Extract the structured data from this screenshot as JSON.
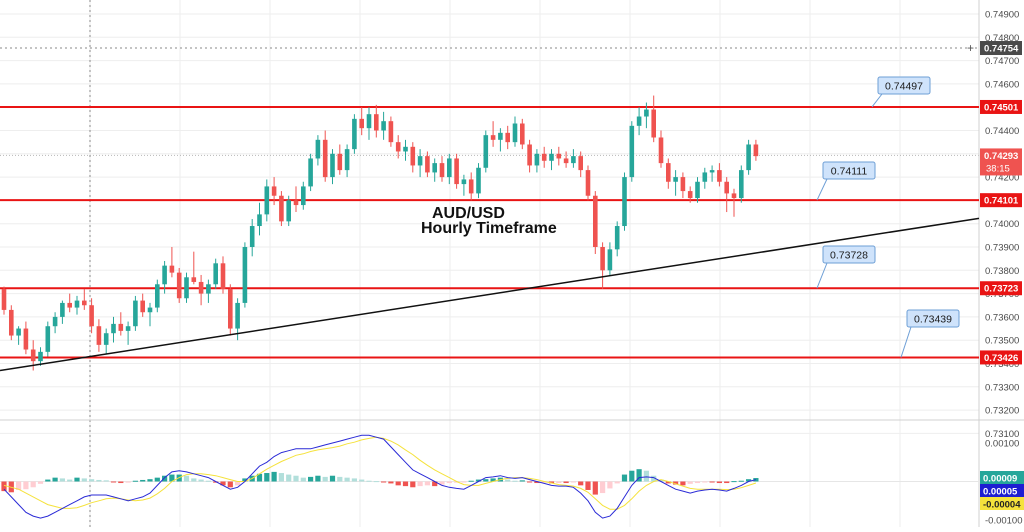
{
  "chart_data": {
    "type": "candlestick",
    "title": "AUD/USD",
    "subtitle": "Hourly Timeframe",
    "price_axis": {
      "ylim": [
        0.73,
        0.75
      ],
      "ticks": [
        "0.74900",
        "0.74800",
        "0.74700",
        "0.74600",
        "0.74500",
        "0.74400",
        "0.74300",
        "0.74200",
        "0.74100",
        "0.74000",
        "0.73900",
        "0.73800",
        "0.73700",
        "0.73600",
        "0.73500",
        "0.73400",
        "0.73300",
        "0.73200",
        "0.73100"
      ],
      "tick_values": [
        0.749,
        0.748,
        0.747,
        0.746,
        0.745,
        0.744,
        0.743,
        0.742,
        0.741,
        0.74,
        0.739,
        0.738,
        0.737,
        0.736,
        0.735,
        0.734,
        0.733,
        0.732,
        0.731
      ],
      "grid": true
    },
    "crosshair": {
      "label": "0.74754",
      "value": 0.74754,
      "plus": "+"
    },
    "current_price": {
      "label": "0.74293",
      "value": 0.74293,
      "countdown": "38:15"
    },
    "horizontal_levels": [
      {
        "value": 0.74501,
        "axis_label": "0.74501",
        "callout": "0.74497"
      },
      {
        "value": 0.74101,
        "axis_label": "0.74101",
        "callout": "0.74111"
      },
      {
        "value": 0.73723,
        "axis_label": "0.73723",
        "callout": "0.73728"
      },
      {
        "value": 0.73426,
        "axis_label": "0.73426",
        "callout": "0.73439"
      }
    ],
    "trendline": {
      "from": [
        0,
        0.7337
      ],
      "to": [
        115,
        0.7393
      ]
    },
    "candles": [
      [
        0.7372,
        0.7373,
        0.7361,
        0.7363
      ],
      [
        0.7363,
        0.7365,
        0.735,
        0.7352
      ],
      [
        0.7352,
        0.7356,
        0.7348,
        0.7355
      ],
      [
        0.7355,
        0.7358,
        0.7344,
        0.7346
      ],
      [
        0.7346,
        0.735,
        0.7337,
        0.7341
      ],
      [
        0.7341,
        0.7347,
        0.7339,
        0.7345
      ],
      [
        0.7345,
        0.7358,
        0.7343,
        0.7356
      ],
      [
        0.7356,
        0.7362,
        0.7353,
        0.736
      ],
      [
        0.736,
        0.7367,
        0.7357,
        0.7366
      ],
      [
        0.7366,
        0.737,
        0.7362,
        0.7364
      ],
      [
        0.7364,
        0.7369,
        0.7361,
        0.7367
      ],
      [
        0.7367,
        0.7372,
        0.7363,
        0.7365
      ],
      [
        0.7365,
        0.7368,
        0.7353,
        0.7356
      ],
      [
        0.7356,
        0.7359,
        0.7345,
        0.7348
      ],
      [
        0.7348,
        0.7355,
        0.7344,
        0.7353
      ],
      [
        0.7353,
        0.736,
        0.7349,
        0.7357
      ],
      [
        0.7357,
        0.7362,
        0.7352,
        0.7354
      ],
      [
        0.7354,
        0.7358,
        0.7348,
        0.7356
      ],
      [
        0.7356,
        0.7369,
        0.7354,
        0.7367
      ],
      [
        0.7367,
        0.737,
        0.736,
        0.7362
      ],
      [
        0.7362,
        0.7366,
        0.7356,
        0.7364
      ],
      [
        0.7364,
        0.7376,
        0.7362,
        0.7374
      ],
      [
        0.7374,
        0.7384,
        0.737,
        0.7382
      ],
      [
        0.7382,
        0.739,
        0.7377,
        0.7379
      ],
      [
        0.7379,
        0.7381,
        0.7366,
        0.7368
      ],
      [
        0.7368,
        0.7379,
        0.7366,
        0.7377
      ],
      [
        0.7377,
        0.7388,
        0.7374,
        0.7375
      ],
      [
        0.7375,
        0.7378,
        0.7365,
        0.737
      ],
      [
        0.737,
        0.7376,
        0.7366,
        0.7374
      ],
      [
        0.7374,
        0.7385,
        0.7372,
        0.7383
      ],
      [
        0.7383,
        0.7386,
        0.737,
        0.7372
      ],
      [
        0.7372,
        0.7374,
        0.7352,
        0.7355
      ],
      [
        0.7355,
        0.7368,
        0.735,
        0.7366
      ],
      [
        0.7366,
        0.7392,
        0.7364,
        0.739
      ],
      [
        0.739,
        0.7402,
        0.7386,
        0.7399
      ],
      [
        0.7399,
        0.7409,
        0.7395,
        0.7404
      ],
      [
        0.7404,
        0.7419,
        0.7401,
        0.7416
      ],
      [
        0.7416,
        0.742,
        0.7408,
        0.7412
      ],
      [
        0.7412,
        0.7414,
        0.7399,
        0.7401
      ],
      [
        0.7401,
        0.7412,
        0.7399,
        0.741
      ],
      [
        0.741,
        0.7416,
        0.7405,
        0.7408
      ],
      [
        0.7408,
        0.7418,
        0.7406,
        0.7416
      ],
      [
        0.7416,
        0.743,
        0.7414,
        0.7428
      ],
      [
        0.7428,
        0.7438,
        0.7425,
        0.7436
      ],
      [
        0.7436,
        0.744,
        0.7418,
        0.742
      ],
      [
        0.742,
        0.7432,
        0.7417,
        0.743
      ],
      [
        0.743,
        0.7434,
        0.7421,
        0.7423
      ],
      [
        0.7423,
        0.7434,
        0.742,
        0.7432
      ],
      [
        0.7432,
        0.7447,
        0.743,
        0.7445
      ],
      [
        0.7445,
        0.745,
        0.7438,
        0.7441
      ],
      [
        0.7441,
        0.745,
        0.7436,
        0.7447
      ],
      [
        0.7447,
        0.7451,
        0.7437,
        0.744
      ],
      [
        0.744,
        0.7448,
        0.7436,
        0.7444
      ],
      [
        0.7444,
        0.7446,
        0.7433,
        0.7435
      ],
      [
        0.7435,
        0.7438,
        0.7428,
        0.7431
      ],
      [
        0.7431,
        0.7436,
        0.7427,
        0.7433
      ],
      [
        0.7433,
        0.7435,
        0.7422,
        0.7425
      ],
      [
        0.7425,
        0.7432,
        0.742,
        0.7429
      ],
      [
        0.7429,
        0.7431,
        0.742,
        0.7422
      ],
      [
        0.7422,
        0.7428,
        0.7418,
        0.7426
      ],
      [
        0.7426,
        0.7429,
        0.7418,
        0.742
      ],
      [
        0.742,
        0.743,
        0.7417,
        0.7428
      ],
      [
        0.7428,
        0.743,
        0.7415,
        0.7417
      ],
      [
        0.7417,
        0.7421,
        0.7412,
        0.7419
      ],
      [
        0.7419,
        0.7422,
        0.741,
        0.7413
      ],
      [
        0.7413,
        0.7426,
        0.7411,
        0.7424
      ],
      [
        0.7424,
        0.744,
        0.7422,
        0.7438
      ],
      [
        0.7438,
        0.7444,
        0.7433,
        0.7436
      ],
      [
        0.7436,
        0.7441,
        0.7431,
        0.7439
      ],
      [
        0.7439,
        0.7442,
        0.7432,
        0.7435
      ],
      [
        0.7435,
        0.7446,
        0.7433,
        0.7443
      ],
      [
        0.7443,
        0.7445,
        0.7432,
        0.7434
      ],
      [
        0.7434,
        0.7436,
        0.7422,
        0.7425
      ],
      [
        0.7425,
        0.7432,
        0.7422,
        0.743
      ],
      [
        0.743,
        0.7433,
        0.7424,
        0.7427
      ],
      [
        0.7427,
        0.7432,
        0.7423,
        0.743
      ],
      [
        0.743,
        0.7433,
        0.7425,
        0.7428
      ],
      [
        0.7428,
        0.7431,
        0.7424,
        0.7426
      ],
      [
        0.7426,
        0.7432,
        0.7424,
        0.7429
      ],
      [
        0.7429,
        0.7431,
        0.742,
        0.7423
      ],
      [
        0.7423,
        0.7425,
        0.741,
        0.7412
      ],
      [
        0.7412,
        0.7414,
        0.7387,
        0.739
      ],
      [
        0.739,
        0.7392,
        0.7372,
        0.738
      ],
      [
        0.738,
        0.7392,
        0.7378,
        0.7389
      ],
      [
        0.7389,
        0.7401,
        0.7386,
        0.7399
      ],
      [
        0.7399,
        0.7422,
        0.7397,
        0.742
      ],
      [
        0.742,
        0.7444,
        0.7418,
        0.7442
      ],
      [
        0.7442,
        0.745,
        0.7438,
        0.7446
      ],
      [
        0.7446,
        0.7452,
        0.7441,
        0.7449
      ],
      [
        0.7449,
        0.7455,
        0.7435,
        0.7437
      ],
      [
        0.7437,
        0.744,
        0.7424,
        0.7426
      ],
      [
        0.7426,
        0.7428,
        0.7415,
        0.7418
      ],
      [
        0.7418,
        0.7423,
        0.7412,
        0.742
      ],
      [
        0.742,
        0.7422,
        0.7411,
        0.7414
      ],
      [
        0.7414,
        0.7416,
        0.7409,
        0.7411
      ],
      [
        0.7411,
        0.742,
        0.7409,
        0.7418
      ],
      [
        0.7418,
        0.7424,
        0.7415,
        0.7422
      ],
      [
        0.7422,
        0.7425,
        0.7418,
        0.7423
      ],
      [
        0.7423,
        0.7426,
        0.7416,
        0.7418
      ],
      [
        0.7418,
        0.742,
        0.7405,
        0.7413
      ],
      [
        0.7413,
        0.7415,
        0.7403,
        0.7411
      ],
      [
        0.7411,
        0.7425,
        0.7409,
        0.7423
      ],
      [
        0.7423,
        0.7436,
        0.7421,
        0.7434
      ],
      [
        0.7434,
        0.7436,
        0.7427,
        0.7429
      ]
    ],
    "macd": {
      "ylim": [
        -0.00105,
        0.0015
      ],
      "ticks": [
        "0.00100",
        "-0.00100"
      ],
      "tick_values": [
        0.001,
        -0.001
      ],
      "labels": [
        {
          "text": "0.00009",
          "value": 9e-05,
          "color": "#26a69a"
        },
        {
          "text": "0.00005",
          "value": 5e-05,
          "color": "#1e1ed2"
        },
        {
          "text": "-0.00004",
          "value": -4e-05,
          "color": "#f5e23c"
        }
      ],
      "histogram": [
        -0.00025,
        -0.00028,
        -0.00022,
        -0.0002,
        -0.00015,
        -6e-05,
        5e-05,
        0.0001,
        8e-05,
        5e-05,
        0.0001,
        8e-05,
        6e-05,
        4e-05,
        3e-05,
        -2e-05,
        -4e-05,
        -3e-05,
        2e-05,
        4e-05,
        6e-05,
        0.0001,
        0.00015,
        0.00018,
        0.00018,
        0.00015,
        8e-05,
        5e-05,
        2e-05,
        -3e-05,
        -0.0001,
        -0.00015,
        -0.0001,
        8e-05,
        0.00015,
        0.0002,
        0.00022,
        0.00025,
        0.00022,
        0.00018,
        0.00015,
        0.0001,
        0.00012,
        0.00015,
        0.00012,
        0.00015,
        0.00012,
        0.0001,
        8e-05,
        5e-05,
        2e-05,
        1e-05,
        -2e-05,
        -5e-05,
        -0.0001,
        -0.00012,
        -0.00015,
        -0.00012,
        -0.0001,
        -0.00012,
        -8e-05,
        -4e-05,
        -3e-05,
        -2e-05,
        2e-05,
        5e-05,
        6e-05,
        8e-05,
        0.0001,
        5e-05,
        2e-05,
        3e-05,
        -2e-05,
        -4e-05,
        -3e-05,
        -5e-05,
        -4e-05,
        -4e-05,
        -2e-05,
        -0.0001,
        -0.00022,
        -0.00034,
        -0.0003,
        -0.00018,
        -5e-05,
        0.00018,
        0.00028,
        0.00032,
        0.00028,
        0.00015,
        5e-05,
        -5e-05,
        -8e-05,
        -0.0001,
        -6e-05,
        -4e-05,
        -2e-05,
        -2e-05,
        -4e-05,
        -4e-05,
        1e-05,
        2e-05,
        6e-05,
        9e-05
      ],
      "macd_line": [
        -0.0002,
        -0.0004,
        -0.0006,
        -0.0008,
        -0.0009,
        -0.00095,
        -0.0009,
        -0.0008,
        -0.0007,
        -0.0006,
        -0.0005,
        -0.0004,
        -0.00035,
        -0.00035,
        -0.00035,
        -0.0004,
        -0.00045,
        -0.0005,
        -0.00045,
        -0.0004,
        -0.0003,
        -0.0001,
        0.0001,
        0.00025,
        0.00028,
        0.00025,
        0.0002,
        0.00015,
        0.0001,
        0.0,
        -0.0001,
        -0.0002,
        -0.00015,
        0.0,
        0.0002,
        0.0004,
        0.0005,
        0.00065,
        0.00075,
        0.0008,
        0.00085,
        0.00085,
        0.00085,
        0.0009,
        0.00095,
        0.001,
        0.00105,
        0.0011,
        0.00115,
        0.0012,
        0.0012,
        0.00115,
        0.0011,
        0.0009,
        0.0007,
        0.0005,
        0.0003,
        0.0002,
        0.0001,
        0.0,
        -0.0001,
        -0.00015,
        -0.00018,
        -0.0002,
        -0.0001,
        0.0,
        0.0001,
        0.00012,
        0.00015,
        0.0001,
        8e-05,
        0.0001,
        5e-05,
        0.0,
        -5e-05,
        -0.0001,
        -0.00012,
        -0.00012,
        -0.00015,
        -0.0003,
        -0.0005,
        -0.0008,
        -0.00095,
        -0.0009,
        -0.0007,
        -0.0004,
        -0.0001,
        0.0001,
        0.00012,
        0.0001,
        0.0,
        -0.0001,
        -0.0002,
        -0.00025,
        -0.0003,
        -0.00025,
        -0.00022,
        -0.0002,
        -0.00022,
        -0.00025,
        -0.00018,
        -0.0001,
        0.0,
        5e-05
      ],
      "signal_line": [
        -0.0001,
        -0.00015,
        -0.0002,
        -0.0003,
        -0.0004,
        -0.0005,
        -0.0006,
        -0.00065,
        -0.0007,
        -0.0007,
        -0.00068,
        -0.00062,
        -0.00055,
        -0.0005,
        -0.00045,
        -0.00043,
        -0.00045,
        -0.00048,
        -0.0005,
        -0.00048,
        -0.00043,
        -0.00032,
        -0.00018,
        0.0,
        0.0001,
        0.00018,
        0.0002,
        0.0002,
        0.00018,
        0.00015,
        0.0001,
        5e-05,
        0.0,
        0.0,
        8e-05,
        0.0002,
        0.00032,
        0.00042,
        0.00052,
        0.0006,
        0.00068,
        0.00072,
        0.00078,
        0.00082,
        0.00085,
        0.00088,
        0.00092,
        0.00098,
        0.00102,
        0.00108,
        0.00112,
        0.00115,
        0.00112,
        0.00105,
        0.00095,
        0.00082,
        0.0007,
        0.00055,
        0.00042,
        0.0003,
        0.0002,
        0.0001,
        0.0,
        -8e-05,
        -0.0001,
        -0.0001,
        -5e-05,
        0.0,
        5e-05,
        8e-05,
        0.0001,
        0.0001,
        8e-05,
        5e-05,
        0.0,
        -4e-05,
        -8e-05,
        -0.0001,
        -0.00012,
        -0.00018,
        -0.00028,
        -0.00045,
        -0.00062,
        -0.00072,
        -0.00072,
        -0.00062,
        -0.00045,
        -0.00025,
        -0.0001,
        0.0,
        5e-05,
        0.0,
        -6e-05,
        -0.00012,
        -0.00018,
        -0.0002,
        -0.0002,
        -0.0002,
        -0.0002,
        -0.00021,
        -0.0002,
        -0.00016,
        -0.0001,
        -4e-05
      ]
    },
    "colors": {
      "up": "#26a69a",
      "down": "#ef5350",
      "level": "#e91414",
      "trendline": "#111111",
      "callout_fill": "#cfe3fb",
      "callout_border": "#6e9fd6",
      "grid": "#eeeeee",
      "hist_up_strong": "#26a69a",
      "hist_up_weak": "#b2dfdb",
      "hist_down_strong": "#ef5350",
      "hist_down_weak": "#ffcdd2",
      "macd_line": "#2a2ad6",
      "signal_line": "#f5e23c",
      "current_label": "#ef5350",
      "crosshair_label": "#4a4a4a"
    }
  }
}
